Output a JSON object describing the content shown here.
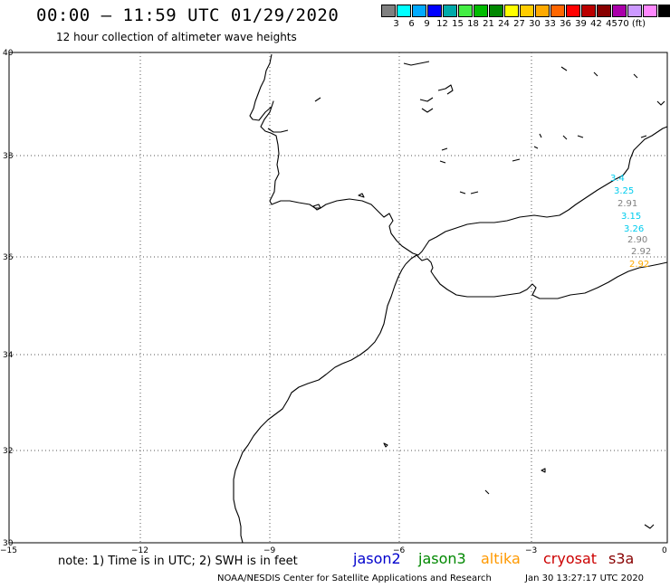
{
  "header": {
    "title": "00:00 – 11:59 UTC 01/29/2020",
    "subtitle": "12 hour collection of altimeter wave heights"
  },
  "color_scale": {
    "colors": [
      "#808080",
      "#00ffff",
      "#00aaff",
      "#0000ff",
      "#00aaaa",
      "#44ee44",
      "#00bb00",
      "#008800",
      "#ffff00",
      "#ffcc00",
      "#ffaa00",
      "#ff6600",
      "#ff0000",
      "#bb0000",
      "#880000",
      "#aa00aa",
      "#cc99ff",
      "#ff88ff",
      "#000000"
    ],
    "labels": [
      "",
      "3",
      "6",
      "9",
      "12",
      "15",
      "18",
      "21",
      "24",
      "27",
      "30",
      "33",
      "36",
      "39",
      "42",
      "45",
      "70 (ft)"
    ],
    "label_list": [
      "3",
      "6",
      "9",
      "12",
      "15",
      "18",
      "21",
      "24",
      "27",
      "30",
      "33",
      "36",
      "39",
      "42",
      "45",
      "70 (ft)"
    ]
  },
  "axes": {
    "y_labels": [
      "40",
      "38",
      "36",
      "34",
      "32",
      "30"
    ],
    "x_labels": [
      "−15",
      "−12",
      "−9",
      "−6",
      "−3",
      "0"
    ]
  },
  "observations": [
    {
      "value": "3.4",
      "color": "#00ccee"
    },
    {
      "value": "3.25",
      "color": "#00ccee"
    },
    {
      "value": "2.91",
      "color": "#808080"
    },
    {
      "value": "3.15",
      "color": "#00ccee"
    },
    {
      "value": "3.26",
      "color": "#00ccee"
    },
    {
      "value": "2.90",
      "color": "#808080"
    },
    {
      "value": "2.92",
      "color": "#808080"
    },
    {
      "value": "2.92",
      "color": "#ffaa00"
    }
  ],
  "notes": {
    "note_text": "note: 1) Time is in UTC; 2) SWH is in feet"
  },
  "legend": {
    "jason2": "jason2",
    "jason3": "jason3",
    "altika": "altika",
    "cryosat": "cryosat",
    "s3a": "s3a",
    "jason2_color": "#0000cc",
    "jason3_color": "#008800",
    "altika_color": "#ff9900",
    "cryosat_color": "#cc0000",
    "s3a_color": "#880000"
  },
  "footer": {
    "source": "NOAA/NESDIS Center for Satellite Applications and Research",
    "timestamp": "Jan 30 13:27:17 UTC 2020"
  }
}
